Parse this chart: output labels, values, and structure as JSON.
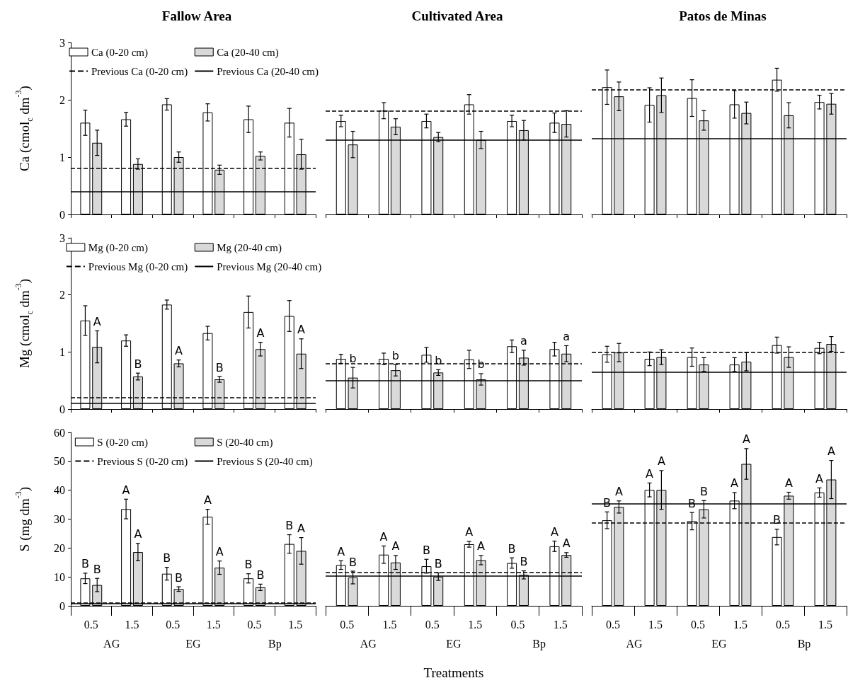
{
  "chart_data": [
    {
      "type": "bar",
      "title": "Fallow Area",
      "ylabel": "Ca (cmol$_{c}$ dm$^{-3}$)",
      "categories": [
        "0.5",
        "1.5",
        "0.5",
        "1.5",
        "0.5",
        "1.5"
      ],
      "series": [
        {
          "name": "Ca (0-20 cm)",
          "color": "#ffffff",
          "values": [
            1.6,
            1.66,
            1.92,
            1.78,
            1.66,
            1.6
          ],
          "errors": [
            0.22,
            0.12,
            0.1,
            0.15,
            0.23,
            0.25
          ]
        },
        {
          "name": "Ca (20-40 cm)",
          "color": "#d9d9d9",
          "values": [
            1.25,
            0.88,
            1.0,
            0.78,
            1.02,
            1.05
          ],
          "errors": [
            0.22,
            0.09,
            0.09,
            0.08,
            0.07,
            0.26
          ]
        }
      ],
      "ylim": [
        0,
        3
      ],
      "yticks": [
        0,
        1,
        2,
        3
      ],
      "ref_lines": [
        {
          "axis": "y",
          "value": 0.8,
          "label": "Previous Ca (0-20 cm)",
          "color": "#000000",
          "line_style": "dashed"
        },
        {
          "axis": "y",
          "value": 0.4,
          "label": "Previous Ca (20-40 cm)",
          "color": "#000000",
          "line_style": "solid"
        }
      ],
      "legend": "top",
      "tick_labels": "y"
    },
    {
      "type": "bar",
      "title": "Cultivated Area",
      "categories": [
        "0.5",
        "1.5",
        "0.5",
        "1.5",
        "0.5",
        "1.5"
      ],
      "series": [
        {
          "color": "#ffffff",
          "values": [
            1.63,
            1.81,
            1.63,
            1.92,
            1.63,
            1.6
          ],
          "errors": [
            0.1,
            0.14,
            0.12,
            0.17,
            0.1,
            0.17
          ]
        },
        {
          "color": "#d9d9d9",
          "values": [
            1.22,
            1.53,
            1.35,
            1.3,
            1.47,
            1.58
          ],
          "errors": [
            0.23,
            0.14,
            0.08,
            0.15,
            0.17,
            0.23
          ]
        }
      ],
      "ylim": [
        0,
        3
      ],
      "ref_lines": [
        {
          "axis": "y",
          "value": 1.8,
          "color": "#000000",
          "line_style": "dashed"
        },
        {
          "axis": "y",
          "value": 1.3,
          "color": "#000000",
          "line_style": "solid"
        }
      ],
      "tick_labels": false
    },
    {
      "type": "bar",
      "title": "Patos de Minas",
      "categories": [
        "0.5",
        "1.5",
        "0.5",
        "1.5",
        "0.5",
        "1.5"
      ],
      "series": [
        {
          "color": "#ffffff",
          "values": [
            2.22,
            1.91,
            2.03,
            1.92,
            2.35,
            1.96
          ],
          "errors": [
            0.3,
            0.3,
            0.32,
            0.24,
            0.2,
            0.12
          ]
        },
        {
          "color": "#d9d9d9",
          "values": [
            2.06,
            2.08,
            1.64,
            1.77,
            1.73,
            1.93
          ],
          "errors": [
            0.25,
            0.3,
            0.17,
            0.19,
            0.22,
            0.18
          ]
        }
      ],
      "ylim": [
        0,
        3
      ],
      "ref_lines": [
        {
          "axis": "y",
          "value": 2.17,
          "color": "#000000",
          "line_style": "dashed"
        },
        {
          "axis": "y",
          "value": 1.33,
          "color": "#000000",
          "line_style": "solid"
        }
      ],
      "tick_labels": false
    },
    {
      "type": "bar",
      "ylabel": "Mg (cmol$_{c}$ dm$^{-3}$)",
      "categories": [
        "0.5",
        "1.5",
        "0.5",
        "1.5",
        "0.5",
        "1.5"
      ],
      "series": [
        {
          "name": "Mg (0-20 cm)",
          "color": "#ffffff",
          "values": [
            1.55,
            1.2,
            1.83,
            1.33,
            1.7,
            1.63
          ],
          "errors": [
            0.26,
            0.1,
            0.08,
            0.12,
            0.28,
            0.27
          ]
        },
        {
          "name": "Mg (20-40 cm)",
          "color": "#d9d9d9",
          "values": [
            1.09,
            0.57,
            0.8,
            0.52,
            1.05,
            0.97
          ],
          "errors": [
            0.28,
            0.06,
            0.06,
            0.05,
            0.12,
            0.26
          ],
          "value_labels": [
            "A",
            "B",
            "A",
            "B",
            "A",
            "A"
          ]
        }
      ],
      "ylim": [
        0,
        3
      ],
      "yticks": [
        0,
        1,
        2,
        3
      ],
      "ref_lines": [
        {
          "axis": "y",
          "value": 0.2,
          "label": "Previous Mg (0-20 cm)",
          "color": "#000000",
          "line_style": "dashed"
        },
        {
          "axis": "y",
          "value": 0.1,
          "label": "Previous Mg (20-40 cm)",
          "color": "#000000",
          "line_style": "solid"
        }
      ],
      "legend": "top",
      "tick_labels": "y"
    },
    {
      "type": "bar",
      "categories": [
        "0.5",
        "1.5",
        "0.5",
        "1.5",
        "0.5",
        "1.5"
      ],
      "series": [
        {
          "color": "#ffffff",
          "values": [
            0.88,
            0.88,
            0.95,
            0.87,
            1.1,
            1.05
          ],
          "errors": [
            0.08,
            0.1,
            0.13,
            0.16,
            0.11,
            0.12
          ]
        },
        {
          "color": "#d9d9d9",
          "values": [
            0.55,
            0.68,
            0.64,
            0.52,
            0.9,
            0.97
          ],
          "errors": [
            0.18,
            0.1,
            0.05,
            0.1,
            0.13,
            0.14
          ],
          "value_labels": [
            "b",
            "b",
            "b",
            "b",
            "a",
            "a"
          ]
        }
      ],
      "ylim": [
        0,
        3
      ],
      "ref_lines": [
        {
          "axis": "y",
          "value": 0.8,
          "color": "#000000",
          "line_style": "dashed"
        },
        {
          "axis": "y",
          "value": 0.5,
          "color": "#000000",
          "line_style": "solid"
        }
      ],
      "tick_labels": false
    },
    {
      "type": "bar",
      "categories": [
        "0.5",
        "1.5",
        "0.5",
        "1.5",
        "0.5",
        "1.5"
      ],
      "series": [
        {
          "color": "#ffffff",
          "values": [
            0.96,
            0.88,
            0.91,
            0.78,
            1.12,
            1.07
          ],
          "errors": [
            0.14,
            0.12,
            0.16,
            0.12,
            0.14,
            0.1
          ]
        },
        {
          "color": "#d9d9d9",
          "values": [
            0.99,
            0.91,
            0.78,
            0.83,
            0.91,
            1.14
          ],
          "errors": [
            0.16,
            0.13,
            0.12,
            0.16,
            0.18,
            0.13
          ]
        }
      ],
      "ylim": [
        0,
        3
      ],
      "ref_lines": [
        {
          "axis": "y",
          "value": 1.0,
          "color": "#000000",
          "line_style": "dashed"
        },
        {
          "axis": "y",
          "value": 0.65,
          "color": "#000000",
          "line_style": "solid"
        }
      ],
      "tick_labels": false
    },
    {
      "type": "bar",
      "ylabel": "S (mg dm$^{-3}$)",
      "categories": [
        "0.5",
        "1.5",
        "0.5",
        "1.5",
        "0.5",
        "1.5"
      ],
      "series": [
        {
          "name": "S (0-20 cm)",
          "color": "#ffffff",
          "values": [
            9.5,
            33.5,
            11.1,
            30.8,
            9.5,
            21.4
          ],
          "errors": [
            1.8,
            3.4,
            2.2,
            2.6,
            1.6,
            3.2
          ],
          "value_labels": [
            "B",
            "A",
            "B",
            "A",
            "B",
            "B"
          ]
        },
        {
          "name": "S (20-40 cm)",
          "color": "#d9d9d9",
          "values": [
            7.2,
            18.6,
            5.8,
            13.2,
            6.4,
            19.0
          ],
          "errors": [
            2.3,
            3,
            0.8,
            2.3,
            1.1,
            4.6
          ],
          "value_labels": [
            "B",
            "A",
            "B",
            "A",
            "B",
            "A"
          ]
        }
      ],
      "ylim": [
        0,
        60
      ],
      "yticks": [
        0,
        10,
        20,
        30,
        40,
        50,
        60
      ],
      "ref_lines": [
        {
          "axis": "y",
          "value": 1.0,
          "label": "Previous S (0-20 cm)",
          "color": "#000000",
          "line_style": "dashed"
        },
        {
          "axis": "y",
          "value": 0.7,
          "label": "Previous S (20-40 cm)",
          "color": "#000000",
          "line_style": "solid"
        }
      ],
      "legend": "top",
      "annotations": [
        "AG",
        "EG",
        "Bp"
      ]
    },
    {
      "type": "bar",
      "xlabel": "Treatments",
      "categories": [
        "0.5",
        "1.5",
        "0.5",
        "1.5",
        "0.5",
        "1.5"
      ],
      "series": [
        {
          "color": "#ffffff",
          "values": [
            14.1,
            17.7,
            13.7,
            21.3,
            14.8,
            20.6
          ],
          "errors": [
            1.5,
            3,
            2.4,
            1,
            1.8,
            1.8
          ],
          "value_labels": [
            "A",
            "A",
            "B",
            "A",
            "B",
            "A"
          ]
        },
        {
          "color": "#d9d9d9",
          "values": [
            9.8,
            15.0,
            10.1,
            15.8,
            10.7,
            17.6
          ],
          "errors": [
            2.2,
            2.4,
            1.3,
            1.6,
            1.4,
            0.8
          ],
          "value_labels": [
            "B",
            "A",
            "B",
            "A",
            "B",
            "A"
          ]
        }
      ],
      "ylim": [
        0,
        60
      ],
      "ref_lines": [
        {
          "axis": "y",
          "value": 11.5,
          "color": "#000000",
          "line_style": "dashed"
        },
        {
          "axis": "y",
          "value": 10.4,
          "color": "#000000",
          "line_style": "solid"
        }
      ],
      "tick_labels": "x",
      "annotations": [
        "AG",
        "EG",
        "Bp"
      ]
    },
    {
      "type": "bar",
      "categories": [
        "0.5",
        "1.5",
        "0.5",
        "1.5",
        "0.5",
        "1.5"
      ],
      "series": [
        {
          "color": "#ffffff",
          "values": [
            29.6,
            40.1,
            29.3,
            36.4,
            23.8,
            39.2
          ],
          "errors": [
            2.9,
            2.4,
            3,
            2.8,
            2.7,
            1.6
          ],
          "value_labels": [
            "B",
            "A",
            "B",
            "A",
            "B",
            "A"
          ]
        },
        {
          "color": "#d9d9d9",
          "values": [
            34.2,
            40.1,
            33.4,
            49.1,
            38.1,
            43.7
          ],
          "errors": [
            2.1,
            6.7,
            3,
            5.3,
            1.2,
            6.6
          ],
          "value_labels": [
            "A",
            "A",
            "B",
            "A",
            "A",
            "A"
          ]
        }
      ],
      "ylim": [
        0,
        60
      ],
      "ref_lines": [
        {
          "axis": "y",
          "value": 28.8,
          "color": "#000000",
          "line_style": "dashed"
        },
        {
          "axis": "y",
          "value": 35.3,
          "color": "#000000",
          "line_style": "solid"
        }
      ],
      "tick_labels": "x",
      "annotations": [
        "AG",
        "EG",
        "Bp"
      ]
    }
  ]
}
